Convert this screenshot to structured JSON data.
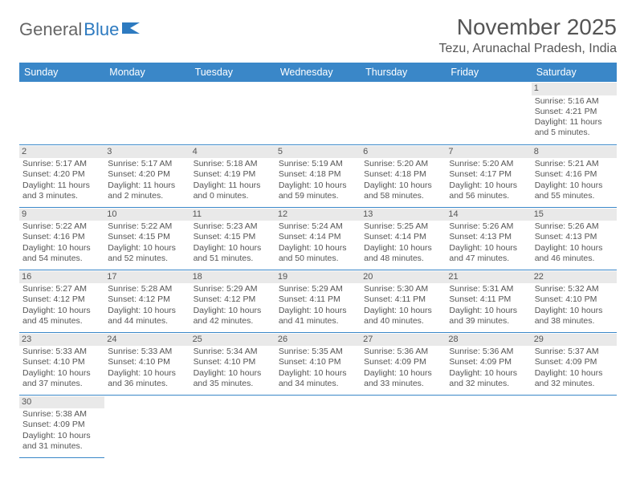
{
  "brand": {
    "part1": "General",
    "part2": "Blue"
  },
  "title": "November 2025",
  "location": "Tezu, Arunachal Pradesh, India",
  "colors": {
    "header_bg": "#3a87c8",
    "border": "#3a87c8",
    "daynum_bg": "#e9e9e9",
    "text": "#555"
  },
  "weekdays": [
    "Sunday",
    "Monday",
    "Tuesday",
    "Wednesday",
    "Thursday",
    "Friday",
    "Saturday"
  ],
  "weeks": [
    [
      null,
      null,
      null,
      null,
      null,
      null,
      {
        "n": "1",
        "sr": "Sunrise: 5:16 AM",
        "ss": "Sunset: 4:21 PM",
        "dl": "Daylight: 11 hours and 5 minutes."
      }
    ],
    [
      {
        "n": "2",
        "sr": "Sunrise: 5:17 AM",
        "ss": "Sunset: 4:20 PM",
        "dl": "Daylight: 11 hours and 3 minutes."
      },
      {
        "n": "3",
        "sr": "Sunrise: 5:17 AM",
        "ss": "Sunset: 4:20 PM",
        "dl": "Daylight: 11 hours and 2 minutes."
      },
      {
        "n": "4",
        "sr": "Sunrise: 5:18 AM",
        "ss": "Sunset: 4:19 PM",
        "dl": "Daylight: 11 hours and 0 minutes."
      },
      {
        "n": "5",
        "sr": "Sunrise: 5:19 AM",
        "ss": "Sunset: 4:18 PM",
        "dl": "Daylight: 10 hours and 59 minutes."
      },
      {
        "n": "6",
        "sr": "Sunrise: 5:20 AM",
        "ss": "Sunset: 4:18 PM",
        "dl": "Daylight: 10 hours and 58 minutes."
      },
      {
        "n": "7",
        "sr": "Sunrise: 5:20 AM",
        "ss": "Sunset: 4:17 PM",
        "dl": "Daylight: 10 hours and 56 minutes."
      },
      {
        "n": "8",
        "sr": "Sunrise: 5:21 AM",
        "ss": "Sunset: 4:16 PM",
        "dl": "Daylight: 10 hours and 55 minutes."
      }
    ],
    [
      {
        "n": "9",
        "sr": "Sunrise: 5:22 AM",
        "ss": "Sunset: 4:16 PM",
        "dl": "Daylight: 10 hours and 54 minutes."
      },
      {
        "n": "10",
        "sr": "Sunrise: 5:22 AM",
        "ss": "Sunset: 4:15 PM",
        "dl": "Daylight: 10 hours and 52 minutes."
      },
      {
        "n": "11",
        "sr": "Sunrise: 5:23 AM",
        "ss": "Sunset: 4:15 PM",
        "dl": "Daylight: 10 hours and 51 minutes."
      },
      {
        "n": "12",
        "sr": "Sunrise: 5:24 AM",
        "ss": "Sunset: 4:14 PM",
        "dl": "Daylight: 10 hours and 50 minutes."
      },
      {
        "n": "13",
        "sr": "Sunrise: 5:25 AM",
        "ss": "Sunset: 4:14 PM",
        "dl": "Daylight: 10 hours and 48 minutes."
      },
      {
        "n": "14",
        "sr": "Sunrise: 5:26 AM",
        "ss": "Sunset: 4:13 PM",
        "dl": "Daylight: 10 hours and 47 minutes."
      },
      {
        "n": "15",
        "sr": "Sunrise: 5:26 AM",
        "ss": "Sunset: 4:13 PM",
        "dl": "Daylight: 10 hours and 46 minutes."
      }
    ],
    [
      {
        "n": "16",
        "sr": "Sunrise: 5:27 AM",
        "ss": "Sunset: 4:12 PM",
        "dl": "Daylight: 10 hours and 45 minutes."
      },
      {
        "n": "17",
        "sr": "Sunrise: 5:28 AM",
        "ss": "Sunset: 4:12 PM",
        "dl": "Daylight: 10 hours and 44 minutes."
      },
      {
        "n": "18",
        "sr": "Sunrise: 5:29 AM",
        "ss": "Sunset: 4:12 PM",
        "dl": "Daylight: 10 hours and 42 minutes."
      },
      {
        "n": "19",
        "sr": "Sunrise: 5:29 AM",
        "ss": "Sunset: 4:11 PM",
        "dl": "Daylight: 10 hours and 41 minutes."
      },
      {
        "n": "20",
        "sr": "Sunrise: 5:30 AM",
        "ss": "Sunset: 4:11 PM",
        "dl": "Daylight: 10 hours and 40 minutes."
      },
      {
        "n": "21",
        "sr": "Sunrise: 5:31 AM",
        "ss": "Sunset: 4:11 PM",
        "dl": "Daylight: 10 hours and 39 minutes."
      },
      {
        "n": "22",
        "sr": "Sunrise: 5:32 AM",
        "ss": "Sunset: 4:10 PM",
        "dl": "Daylight: 10 hours and 38 minutes."
      }
    ],
    [
      {
        "n": "23",
        "sr": "Sunrise: 5:33 AM",
        "ss": "Sunset: 4:10 PM",
        "dl": "Daylight: 10 hours and 37 minutes."
      },
      {
        "n": "24",
        "sr": "Sunrise: 5:33 AM",
        "ss": "Sunset: 4:10 PM",
        "dl": "Daylight: 10 hours and 36 minutes."
      },
      {
        "n": "25",
        "sr": "Sunrise: 5:34 AM",
        "ss": "Sunset: 4:10 PM",
        "dl": "Daylight: 10 hours and 35 minutes."
      },
      {
        "n": "26",
        "sr": "Sunrise: 5:35 AM",
        "ss": "Sunset: 4:10 PM",
        "dl": "Daylight: 10 hours and 34 minutes."
      },
      {
        "n": "27",
        "sr": "Sunrise: 5:36 AM",
        "ss": "Sunset: 4:09 PM",
        "dl": "Daylight: 10 hours and 33 minutes."
      },
      {
        "n": "28",
        "sr": "Sunrise: 5:36 AM",
        "ss": "Sunset: 4:09 PM",
        "dl": "Daylight: 10 hours and 32 minutes."
      },
      {
        "n": "29",
        "sr": "Sunrise: 5:37 AM",
        "ss": "Sunset: 4:09 PM",
        "dl": "Daylight: 10 hours and 32 minutes."
      }
    ],
    [
      {
        "n": "30",
        "sr": "Sunrise: 5:38 AM",
        "ss": "Sunset: 4:09 PM",
        "dl": "Daylight: 10 hours and 31 minutes."
      },
      null,
      null,
      null,
      null,
      null,
      null
    ]
  ]
}
